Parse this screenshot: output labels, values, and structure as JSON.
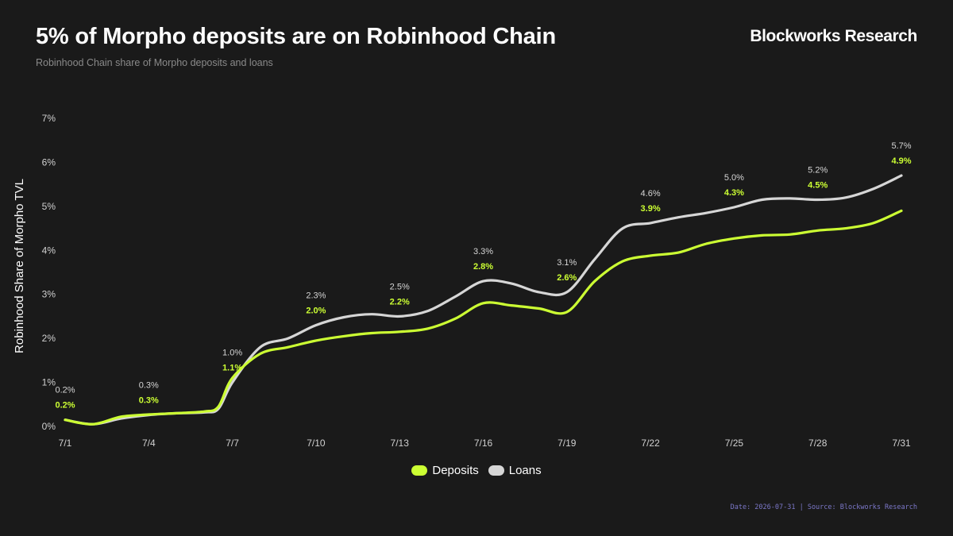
{
  "header": {
    "title": "5% of Morpho deposits are on Robinhood Chain",
    "subtitle": "Robinhood Chain share of Morpho deposits and loans",
    "brand": "Blockworks Research"
  },
  "footer": {
    "text": "Date: 2026-07-31 | Source: Blockworks Research"
  },
  "chart_data": {
    "type": "line",
    "ylabel": "Robinhood Share of Morpho TVL",
    "ylim": [
      0,
      7
    ],
    "y_ticks": [
      "0%",
      "1%",
      "2%",
      "3%",
      "4%",
      "5%",
      "6%",
      "7%"
    ],
    "x_ticks": [
      "7/1",
      "7/4",
      "7/7",
      "7/10",
      "7/13",
      "7/16",
      "7/19",
      "7/22",
      "7/25",
      "7/28",
      "7/31"
    ],
    "grid": false,
    "legend_position": "bottom-center",
    "series": [
      {
        "name": "Deposits",
        "color": "#ccff33",
        "x": [
          1,
          2,
          3,
          4,
          5,
          6,
          6.5,
          7,
          8,
          9,
          10,
          11,
          12,
          13,
          14,
          15,
          16,
          17,
          18,
          19,
          20,
          21,
          22,
          23,
          24,
          25,
          26,
          27,
          28,
          29,
          30,
          31
        ],
        "values": [
          0.15,
          0.05,
          0.22,
          0.27,
          0.3,
          0.34,
          0.45,
          1.1,
          1.65,
          1.8,
          1.95,
          2.05,
          2.12,
          2.15,
          2.22,
          2.45,
          2.8,
          2.75,
          2.68,
          2.6,
          3.3,
          3.75,
          3.88,
          3.95,
          4.15,
          4.27,
          4.34,
          4.36,
          4.45,
          4.5,
          4.62,
          4.9
        ]
      },
      {
        "name": "Loans",
        "color": "#d6d6d6",
        "x": [
          1,
          2,
          3,
          4,
          5,
          6,
          6.5,
          7,
          8,
          9,
          10,
          11,
          12,
          13,
          14,
          15,
          16,
          17,
          18,
          19,
          20,
          21,
          22,
          23,
          24,
          25,
          26,
          27,
          28,
          29,
          30,
          31
        ],
        "values": [
          0.15,
          0.05,
          0.18,
          0.26,
          0.3,
          0.32,
          0.4,
          1.0,
          1.8,
          2.0,
          2.3,
          2.48,
          2.55,
          2.5,
          2.62,
          2.95,
          3.3,
          3.25,
          3.05,
          3.05,
          3.8,
          4.5,
          4.62,
          4.75,
          4.85,
          4.98,
          5.15,
          5.18,
          5.15,
          5.2,
          5.4,
          5.7
        ]
      }
    ],
    "annotations": [
      {
        "x": 1,
        "loans": "0.2%",
        "deposits": "0.2%"
      },
      {
        "x": 4,
        "loans": "0.3%",
        "deposits": "0.3%"
      },
      {
        "x": 7,
        "loans": "1.0%",
        "deposits": "1.1%"
      },
      {
        "x": 10,
        "loans": "2.3%",
        "deposits": "2.0%"
      },
      {
        "x": 13,
        "loans": "2.5%",
        "deposits": "2.2%"
      },
      {
        "x": 16,
        "loans": "3.3%",
        "deposits": "2.8%"
      },
      {
        "x": 19,
        "loans": "3.1%",
        "deposits": "2.6%"
      },
      {
        "x": 22,
        "loans": "4.6%",
        "deposits": "3.9%"
      },
      {
        "x": 25,
        "loans": "5.0%",
        "deposits": "4.3%"
      },
      {
        "x": 28,
        "loans": "5.2%",
        "deposits": "4.5%"
      },
      {
        "x": 31,
        "loans": "5.7%",
        "deposits": "4.9%"
      }
    ]
  }
}
